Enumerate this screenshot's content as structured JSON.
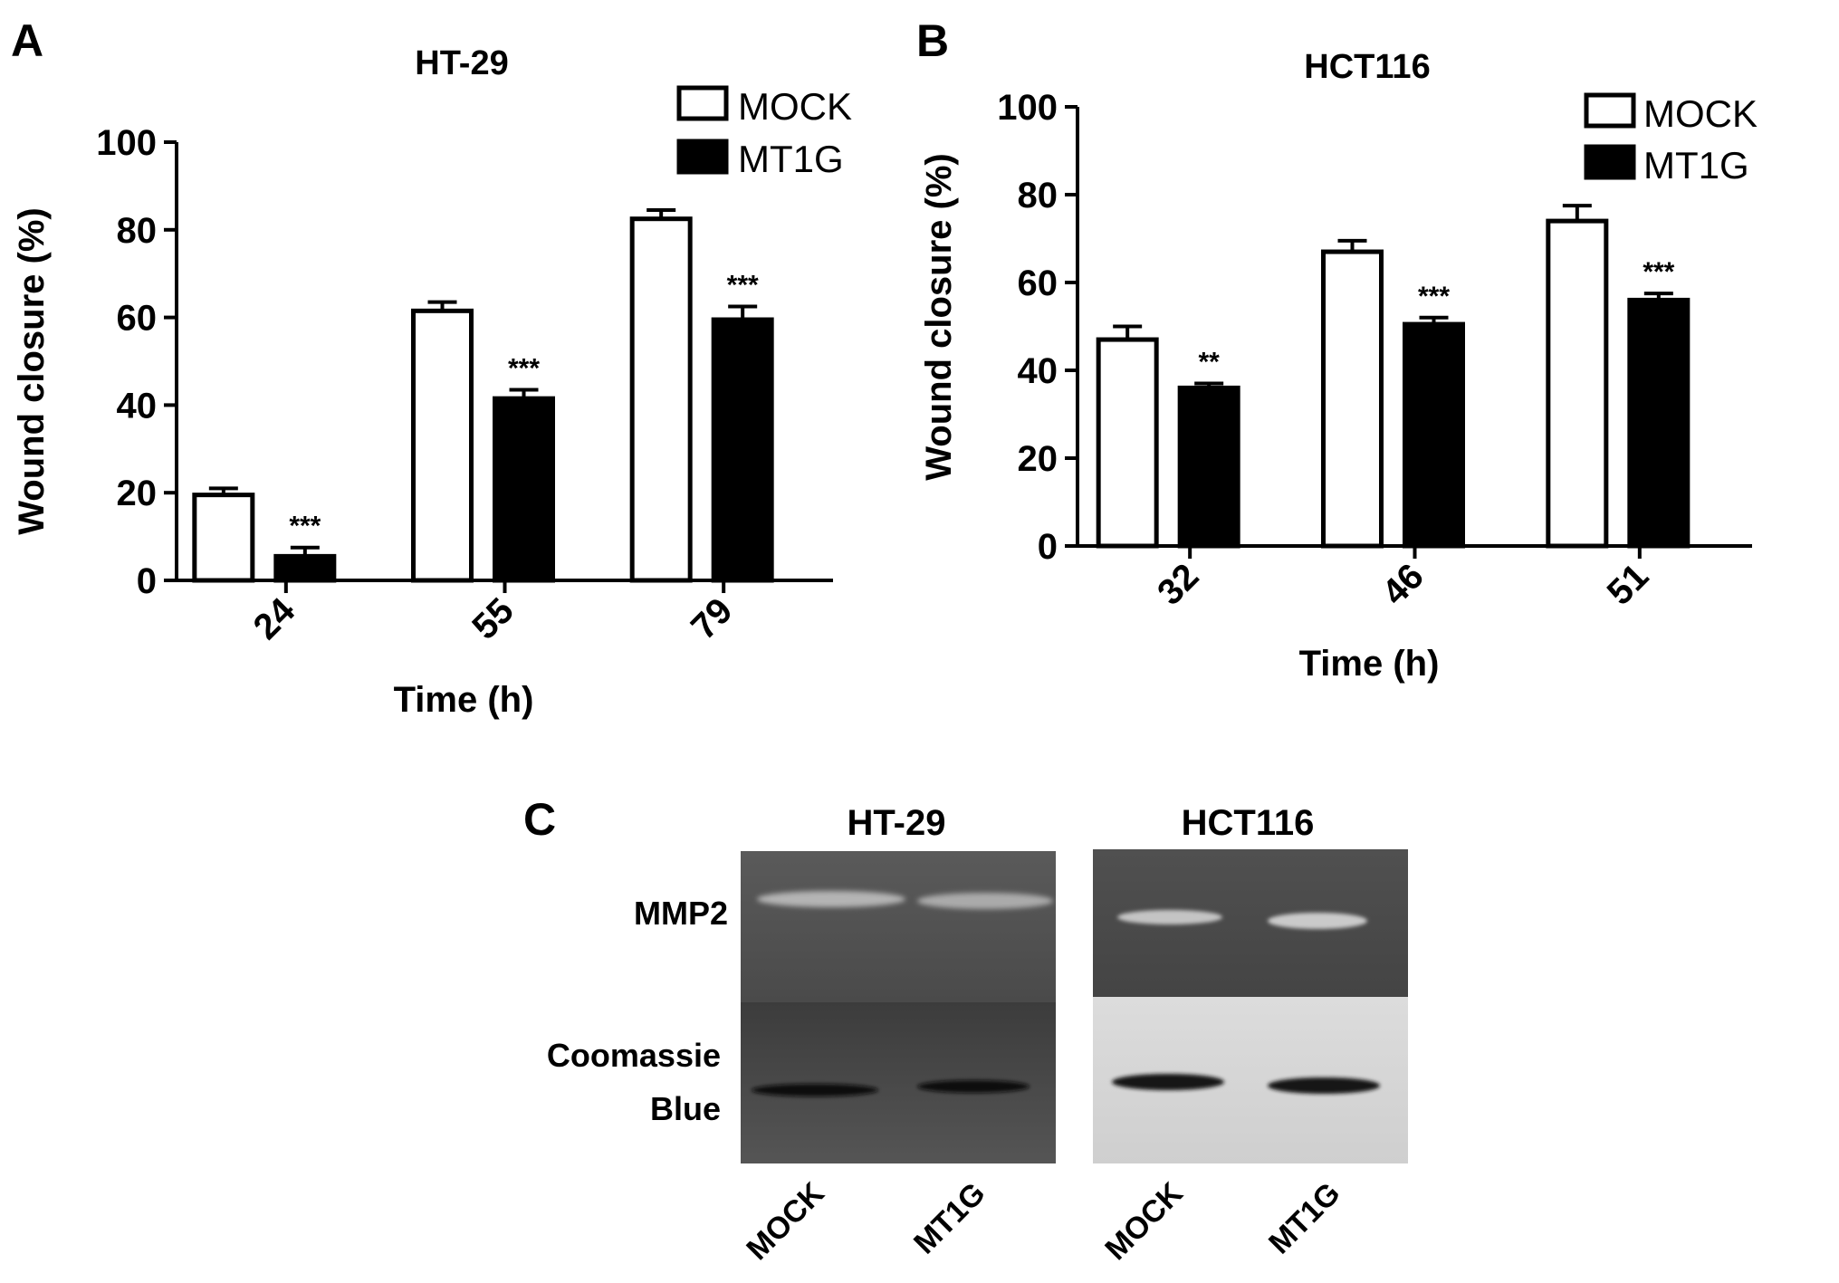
{
  "panels": [
    {
      "letter": "A"
    },
    {
      "letter": "B"
    },
    {
      "letter": "C"
    }
  ],
  "chart_data": [
    {
      "type": "bar",
      "title": "HT-29",
      "xlabel": "Time (h)",
      "ylabel": "Wound closure (%)",
      "ylim": [
        0,
        100
      ],
      "yticks": [
        "0",
        "20",
        "40",
        "60",
        "80",
        "100"
      ],
      "categories": [
        "24",
        "55",
        "79"
      ],
      "series": [
        {
          "name": "MOCK",
          "fill": "#ffffff",
          "values": [
            19.5,
            61.5,
            82.5
          ],
          "errors": [
            1.5,
            2.0,
            2.0
          ]
        },
        {
          "name": "MT1G",
          "fill": "#000000",
          "values": [
            5.5,
            41.5,
            59.5
          ],
          "errors": [
            2.0,
            2.0,
            3.0
          ]
        }
      ],
      "annotations": [
        {
          "category": "24",
          "series": "MT1G",
          "text": "***"
        },
        {
          "category": "55",
          "series": "MT1G",
          "text": "***"
        },
        {
          "category": "79",
          "series": "MT1G",
          "text": "***"
        }
      ],
      "legend_position": "top-right",
      "grid": false
    },
    {
      "type": "bar",
      "title": "HCT116",
      "xlabel": "Time (h)",
      "ylabel": "Wound closure (%)",
      "ylim": [
        0,
        100
      ],
      "yticks": [
        "0",
        "20",
        "40",
        "60",
        "80",
        "100"
      ],
      "categories": [
        "32",
        "46",
        "51"
      ],
      "series": [
        {
          "name": "MOCK",
          "fill": "#ffffff",
          "values": [
            47,
            67,
            74
          ],
          "errors": [
            3.0,
            2.5,
            3.5
          ]
        },
        {
          "name": "MT1G",
          "fill": "#000000",
          "values": [
            36,
            50.5,
            56
          ],
          "errors": [
            1.0,
            1.5,
            1.5
          ]
        }
      ],
      "annotations": [
        {
          "category": "32",
          "series": "MT1G",
          "text": "**"
        },
        {
          "category": "46",
          "series": "MT1G",
          "text": "***"
        },
        {
          "category": "51",
          "series": "MT1G",
          "text": "***"
        }
      ],
      "legend_position": "top-right",
      "grid": false
    }
  ],
  "gel": {
    "groups": [
      "HT-29",
      "HCT116"
    ],
    "row_labels": {
      "top": "MMP2",
      "bottom_line1": "Coomassie",
      "bottom_line2": "Blue"
    },
    "lane_labels": [
      "MOCK",
      "MT1G",
      "MOCK",
      "MT1G"
    ]
  }
}
